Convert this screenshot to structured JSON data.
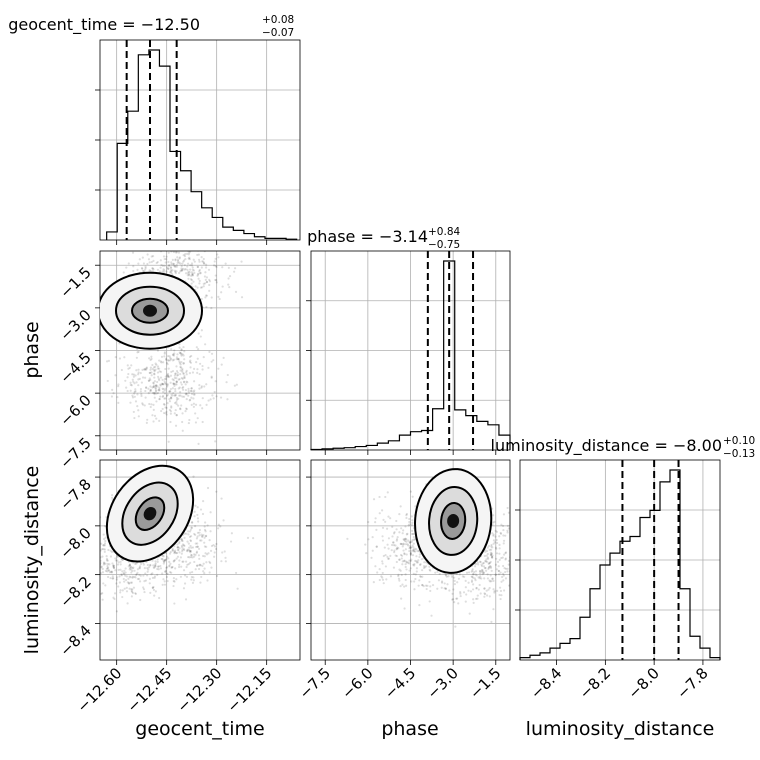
{
  "chart_data": {
    "type": "corner",
    "parameters": [
      "geocent_time",
      "phase",
      "luminosity_distance"
    ],
    "axis_labels": {
      "geocent_time": "geocent_time",
      "phase": "phase",
      "luminosity_distance": "luminosity_distance",
      "phase_y": "phase",
      "luminosity_distance_y": "luminosity_distance"
    },
    "titles": {
      "geocent_time": {
        "main": "geocent_time = −12.50",
        "plus": "+0.08",
        "minus": "−0.07"
      },
      "phase": {
        "main": "phase = −3.14",
        "plus": "+0.84",
        "minus": "−0.75"
      },
      "luminosity_distance": {
        "main": "luminosity_distance = −8.00",
        "plus": "+0.10",
        "minus": "−0.13"
      }
    },
    "ranges": {
      "geocent_time": [
        -12.65,
        -12.05
      ],
      "phase": [
        -8.0,
        -1.0
      ],
      "luminosity_distance": [
        -8.55,
        -7.73
      ]
    },
    "ticks": {
      "geocent_time": [
        {
          "v": -12.6,
          "label": "−12.60"
        },
        {
          "v": -12.45,
          "label": "−12.45"
        },
        {
          "v": -12.3,
          "label": "−12.30"
        },
        {
          "v": -12.15,
          "label": "−12.15"
        }
      ],
      "phase": [
        {
          "v": -7.5,
          "label": "−7.5"
        },
        {
          "v": -6.0,
          "label": "−6.0"
        },
        {
          "v": -4.5,
          "label": "−4.5"
        },
        {
          "v": -3.0,
          "label": "−3.0"
        },
        {
          "v": -1.5,
          "label": "−1.5"
        }
      ],
      "luminosity_distance": [
        {
          "v": -8.4,
          "label": "−8.4"
        },
        {
          "v": -8.2,
          "label": "−8.2"
        },
        {
          "v": -8.0,
          "label": "−8.0"
        },
        {
          "v": -7.8,
          "label": "−7.8"
        }
      ]
    },
    "quantiles": {
      "geocent_time": [
        -12.57,
        -12.5,
        -12.42
      ],
      "phase": [
        -3.89,
        -3.14,
        -2.3
      ],
      "luminosity_distance": [
        -8.13,
        -8.0,
        -7.9
      ]
    },
    "histograms": {
      "geocent_time": {
        "start": -12.63,
        "end": -12.06,
        "counts": [
          5,
          60,
          80,
          115,
          118,
          108,
          55,
          43,
          30,
          20,
          14,
          8,
          6,
          4,
          2,
          1,
          1,
          0.5
        ]
      },
      "phase": {
        "start": -8.0,
        "end": -1.0,
        "counts": [
          0.5,
          1,
          1.5,
          2,
          3,
          4,
          6,
          8,
          13,
          16,
          17,
          36,
          165,
          35,
          30,
          25,
          22,
          13
        ]
      },
      "luminosity_distance": {
        "start": -8.55,
        "end": -7.73,
        "counts": [
          1,
          2,
          3,
          5,
          7,
          9,
          18,
          30,
          40,
          45,
          50,
          52,
          60,
          63,
          75,
          80,
          30,
          10,
          5,
          1
        ]
      }
    },
    "scatter": {
      "geocent_time__phase": {
        "points": 2400,
        "centers": [
          [
            -12.5,
            -3.1
          ],
          [
            -12.42,
            -1.8
          ],
          [
            -12.45,
            -5.6
          ]
        ]
      },
      "geocent_time__luminosity_distance": {
        "points": 2400,
        "centers": [
          [
            -12.5,
            -7.95
          ],
          [
            -12.57,
            -8.12
          ],
          [
            -12.42,
            -8.08
          ]
        ]
      },
      "phase__luminosity_distance": {
        "points": 2400,
        "centers": [
          [
            -3.0,
            -7.98
          ],
          [
            -4.1,
            -8.08
          ],
          [
            -2.2,
            -8.15
          ]
        ]
      }
    },
    "grid": true
  }
}
